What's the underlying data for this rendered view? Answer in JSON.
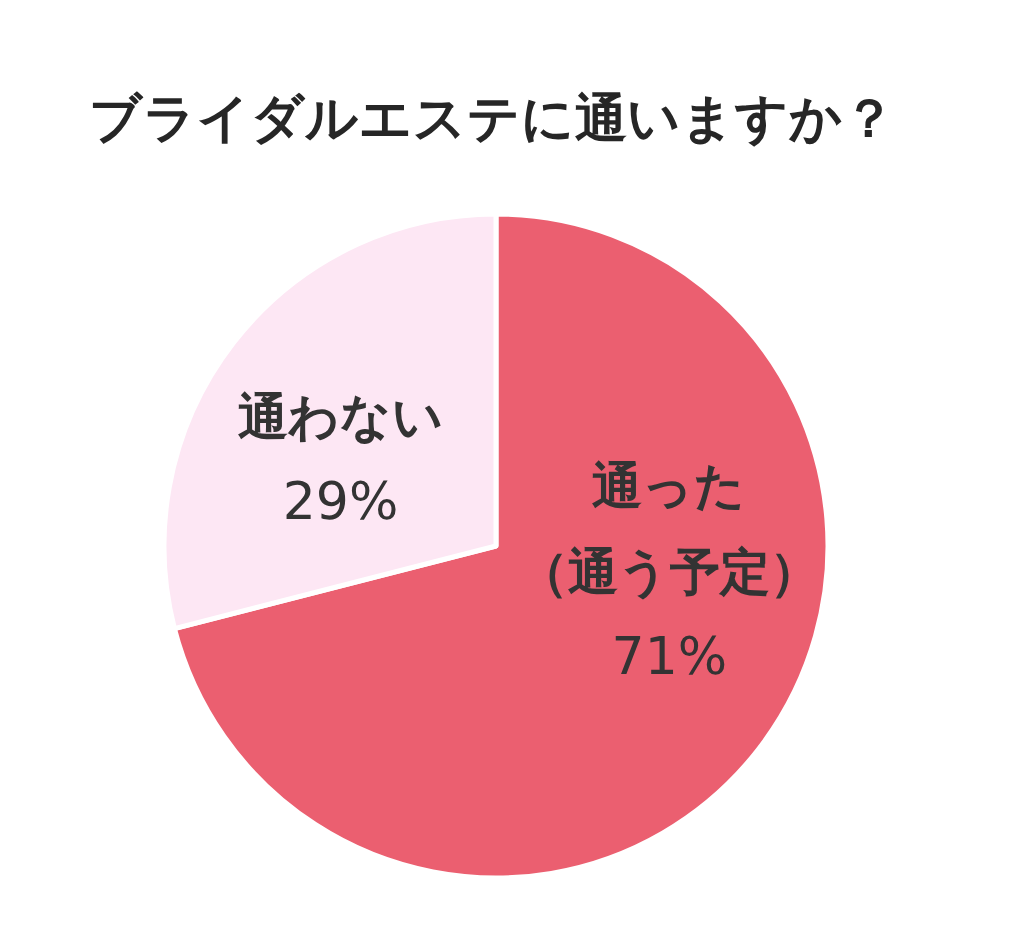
{
  "chart_data": {
    "type": "pie",
    "title": "ブライダルエステに通いますか？",
    "categories": [
      "通った（通う予定）",
      "通わない"
    ],
    "values": [
      71,
      29
    ],
    "colors": [
      "#eb5f70",
      "#fde7f4"
    ],
    "value_labels": [
      "71%",
      "29%"
    ]
  }
}
